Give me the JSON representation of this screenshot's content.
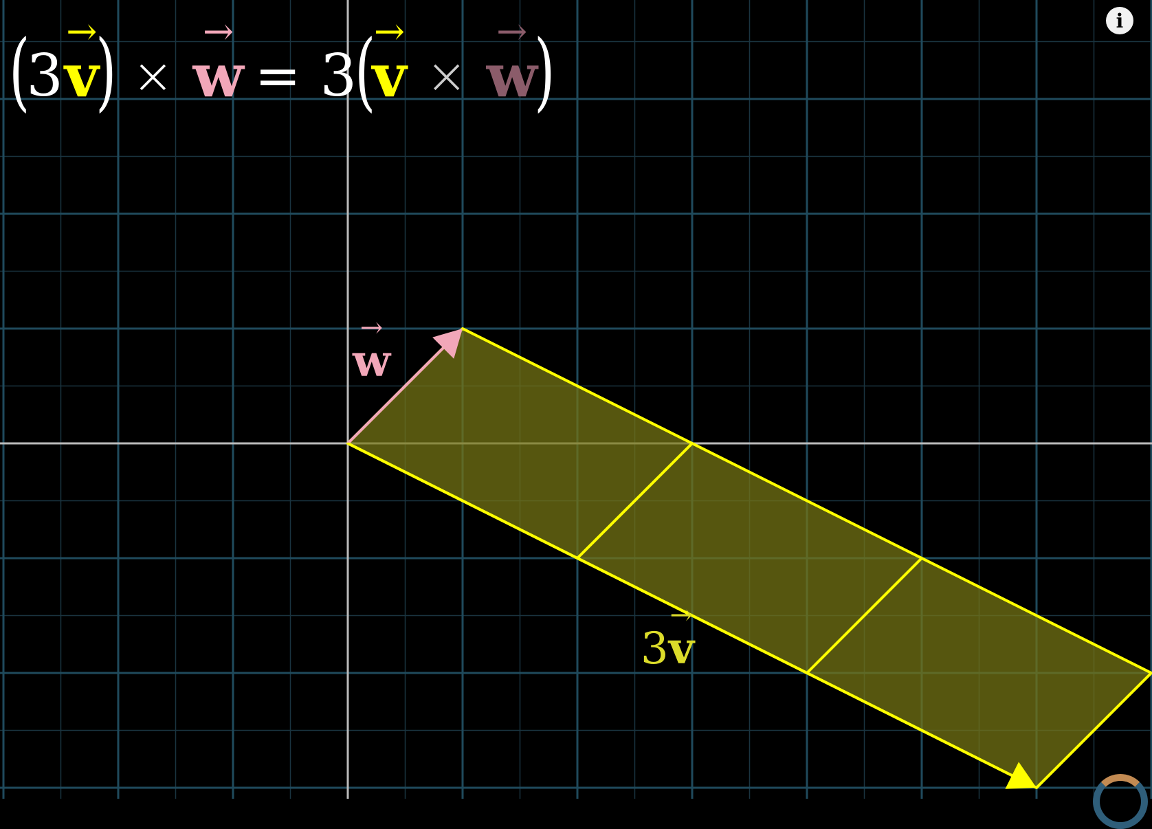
{
  "equation": {
    "lhs_open": "(",
    "lhs_coef": "3",
    "lhs_vec_v": "v",
    "lhs_close": ")",
    "lhs_cross": "×",
    "lhs_vec_w": "w",
    "equals": "=",
    "rhs_coef": "3",
    "rhs_open": "(",
    "rhs_vec_v": "v",
    "rhs_cross": "×",
    "rhs_vec_w": "w",
    "rhs_close": ")"
  },
  "labels": {
    "w_label": "w",
    "three_v_coef": "3",
    "three_v_vec": "v"
  },
  "diagram": {
    "grid_unit_count_x": [
      -3,
      7
    ],
    "grid_unit_count_y": [
      -3,
      4
    ],
    "vector_w": [
      1,
      1
    ],
    "vector_v": [
      2,
      -1
    ],
    "scale": 3,
    "colors": {
      "background": "#000000",
      "grid_major": "#1f4a5c",
      "grid_minor": "#1a3440",
      "axis": "#bbbbbb",
      "v_vector": "#ffff00",
      "w_vector": "#f2a7b9",
      "parallelogram_fill": "#777715"
    }
  },
  "icons": {
    "info": "info-icon",
    "loading": "loading-spinner-icon"
  },
  "info_glyph": "i"
}
